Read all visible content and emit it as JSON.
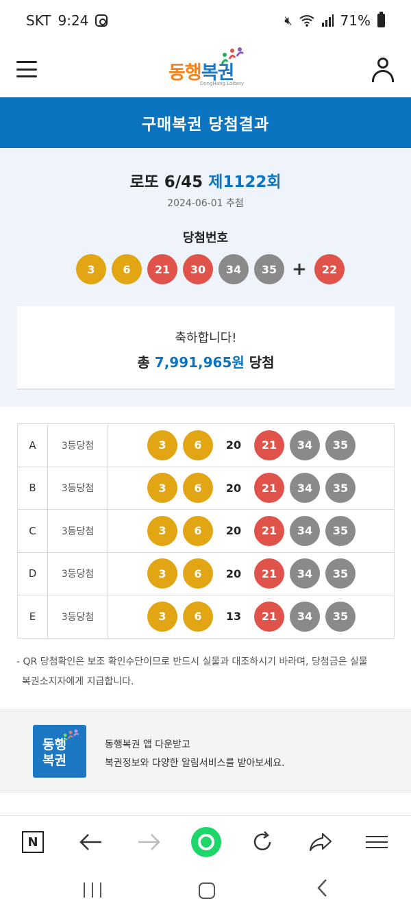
{
  "status_bar": {
    "carrier": "SKT",
    "time": "9:24",
    "battery": "71%"
  },
  "header": {
    "logo_text_orange": "동행",
    "logo_text_blue": "복권",
    "logo_subtext": "DongHang Lottery"
  },
  "page_title": "구매복권 당첨결과",
  "draw": {
    "game": "로또 6/45",
    "round": "제1122회",
    "date": "2024-06-01 추첨",
    "numbers_label": "당첨번호",
    "numbers": [
      3,
      6,
      21,
      30,
      34,
      35
    ],
    "plus": "+",
    "bonus": 22
  },
  "prize": {
    "congrats": "축하합니다!",
    "prefix": "총",
    "amount": "7,991,965원",
    "suffix": "당첨"
  },
  "games": [
    {
      "letter": "A",
      "rank": "3등당첨",
      "numbers": [
        3,
        6,
        20,
        21,
        34,
        35
      ],
      "matched": [
        true,
        true,
        false,
        true,
        true,
        true
      ]
    },
    {
      "letter": "B",
      "rank": "3등당첨",
      "numbers": [
        3,
        6,
        20,
        21,
        34,
        35
      ],
      "matched": [
        true,
        true,
        false,
        true,
        true,
        true
      ]
    },
    {
      "letter": "C",
      "rank": "3등당첨",
      "numbers": [
        3,
        6,
        20,
        21,
        34,
        35
      ],
      "matched": [
        true,
        true,
        false,
        true,
        true,
        true
      ]
    },
    {
      "letter": "D",
      "rank": "3등당첨",
      "numbers": [
        3,
        6,
        20,
        21,
        34,
        35
      ],
      "matched": [
        true,
        true,
        false,
        true,
        true,
        true
      ]
    },
    {
      "letter": "E",
      "rank": "3등당첨",
      "numbers": [
        3,
        6,
        13,
        21,
        34,
        35
      ],
      "matched": [
        true,
        true,
        false,
        true,
        true,
        true
      ]
    }
  ],
  "notice": {
    "line1": "- QR 당첨확인은 보조 확인수단이므로 반드시 실물과 대조하시기 바라며, 당첨금은 실물",
    "line2": "복권소지자에게 지급합니다."
  },
  "app_banner": {
    "logo_line1": "동행",
    "logo_line2": "복권",
    "line1": "동행복권 앱 다운받고",
    "line2": "복권정보와 다양한 알림서비스를 받아보세요."
  },
  "toolbar": {
    "n_label": "N",
    "icons": [
      "naver-n-icon",
      "back-arrow-icon",
      "forward-arrow-icon",
      "home-green-icon",
      "refresh-icon",
      "share-icon",
      "menu-icon"
    ]
  },
  "ball_colors": {
    "1-10": "#e2a514",
    "11-20": "#2b8ad6",
    "21-30": "#e0534a",
    "31-40": "#8a8a8a"
  }
}
